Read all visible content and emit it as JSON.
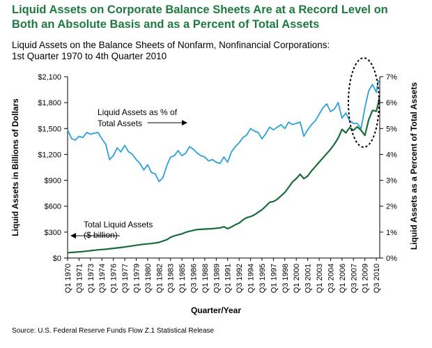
{
  "header": {
    "title_line1": "Liquid Assets on Corporate Balance Sheets Are at a Record Level on",
    "title_line2": "Both an Absolute Basis and as a Percent of Total Assets",
    "subtitle_line1": "Liquid Assets on the Balance Sheets of Nonfarm, Nonfinancial Corporations:",
    "subtitle_line2": "1st Quarter 1970 to 4th Quarter 2010"
  },
  "source": "Source: U.S. Federal Reserve Funds Flow Z.1 Statistical Release",
  "colors": {
    "pct_line": "#2aa0d8",
    "total_line": "#1a6b3a",
    "axis": "#000000"
  },
  "chart_data": {
    "type": "line",
    "xlabel": "Quarter/Year",
    "ylabel_left": "Liquid Assets in Billions of Dollars",
    "ylabel_right": "Liquid Assets as a Percent of Total Assets",
    "ylim_left": [
      0,
      2100
    ],
    "ylim_right": [
      0,
      7
    ],
    "y_ticks_left": [
      "$0",
      "$300",
      "$600",
      "$900",
      "$1,200",
      "$1,500",
      "$1,800",
      "$2,100"
    ],
    "y_ticks_right": [
      "0%",
      "1%",
      "2%",
      "3%",
      "4%",
      "5%",
      "6%",
      "7%"
    ],
    "x_tick_labels": [
      "Q1 1970",
      "Q3 1971",
      "Q1 1973",
      "Q3 1974",
      "Q1 1976",
      "Q3 1977",
      "Q1 1979",
      "Q3 1980",
      "Q1 1982",
      "Q3 1983",
      "Q1 1985",
      "Q3 1986",
      "Q1 1988",
      "Q3 1989",
      "Q1 1991",
      "Q3 1992",
      "Q1 1994",
      "Q3 1995",
      "Q1 1997",
      "Q3 1998",
      "Q1 2000",
      "Q3 2001",
      "Q1 2003",
      "Q3 2004",
      "Q1 2006",
      "Q3 2007",
      "Q1 2009",
      "Q3 2010"
    ],
    "annotations": [
      {
        "text_line1": "Liquid Assets as % of",
        "text_line2": "Total Assets",
        "arrow": "right"
      },
      {
        "text_line1": "Total Liquid Assets",
        "text_line2": "($ billion)",
        "arrow": "left"
      }
    ],
    "highlight": "dashed ellipse around 2008–2010 peak",
    "series": [
      {
        "name": "Liquid Assets as % of Total Assets",
        "axis": "right",
        "color": "#2aa0d8",
        "points": [
          [
            1970.0,
            4.95
          ],
          [
            1970.5,
            4.62
          ],
          [
            1971.0,
            4.55
          ],
          [
            1971.5,
            4.7
          ],
          [
            1972.0,
            4.65
          ],
          [
            1972.5,
            4.85
          ],
          [
            1973.0,
            4.78
          ],
          [
            1973.5,
            4.82
          ],
          [
            1974.0,
            4.85
          ],
          [
            1974.5,
            4.6
          ],
          [
            1975.0,
            4.4
          ],
          [
            1975.5,
            3.8
          ],
          [
            1976.0,
            3.95
          ],
          [
            1976.5,
            4.25
          ],
          [
            1977.0,
            4.1
          ],
          [
            1977.5,
            4.35
          ],
          [
            1978.0,
            4.1
          ],
          [
            1978.5,
            4.0
          ],
          [
            1979.0,
            3.8
          ],
          [
            1979.5,
            3.65
          ],
          [
            1980.0,
            3.4
          ],
          [
            1980.5,
            3.6
          ],
          [
            1981.0,
            3.3
          ],
          [
            1981.5,
            3.25
          ],
          [
            1982.0,
            2.95
          ],
          [
            1982.5,
            3.1
          ],
          [
            1983.0,
            3.55
          ],
          [
            1983.5,
            3.9
          ],
          [
            1984.0,
            3.95
          ],
          [
            1984.5,
            4.15
          ],
          [
            1985.0,
            3.95
          ],
          [
            1985.5,
            4.05
          ],
          [
            1986.0,
            4.3
          ],
          [
            1986.5,
            4.2
          ],
          [
            1987.0,
            4.05
          ],
          [
            1987.5,
            3.95
          ],
          [
            1988.0,
            3.9
          ],
          [
            1988.5,
            3.75
          ],
          [
            1989.0,
            3.8
          ],
          [
            1989.5,
            3.7
          ],
          [
            1990.0,
            3.65
          ],
          [
            1990.5,
            3.9
          ],
          [
            1991.0,
            3.7
          ],
          [
            1991.5,
            4.1
          ],
          [
            1992.0,
            4.3
          ],
          [
            1992.5,
            4.45
          ],
          [
            1993.0,
            4.65
          ],
          [
            1993.5,
            4.75
          ],
          [
            1994.0,
            5.0
          ],
          [
            1994.5,
            4.9
          ],
          [
            1995.0,
            4.85
          ],
          [
            1995.5,
            4.6
          ],
          [
            1996.0,
            4.8
          ],
          [
            1996.5,
            5.05
          ],
          [
            1997.0,
            4.95
          ],
          [
            1997.5,
            5.05
          ],
          [
            1998.0,
            5.15
          ],
          [
            1998.5,
            5.0
          ],
          [
            1999.0,
            5.25
          ],
          [
            1999.5,
            5.15
          ],
          [
            2000.0,
            5.2
          ],
          [
            2000.5,
            5.25
          ],
          [
            2001.0,
            4.7
          ],
          [
            2001.5,
            4.95
          ],
          [
            2002.0,
            5.15
          ],
          [
            2002.5,
            5.3
          ],
          [
            2003.0,
            5.55
          ],
          [
            2003.5,
            5.8
          ],
          [
            2004.0,
            5.95
          ],
          [
            2004.5,
            5.65
          ],
          [
            2005.0,
            5.75
          ],
          [
            2005.5,
            6.0
          ],
          [
            2006.0,
            5.4
          ],
          [
            2006.5,
            5.6
          ],
          [
            2007.0,
            5.3
          ],
          [
            2007.5,
            5.2
          ],
          [
            2008.0,
            5.2
          ],
          [
            2008.5,
            5.0
          ],
          [
            2009.0,
            5.8
          ],
          [
            2009.5,
            6.45
          ],
          [
            2010.0,
            6.7
          ],
          [
            2010.5,
            6.4
          ],
          [
            2010.75,
            6.85
          ],
          [
            2010.9,
            6.8
          ]
        ]
      },
      {
        "name": "Total Liquid Assets ($ billion)",
        "axis": "left",
        "color": "#1a6b3a",
        "points": [
          [
            1970.0,
            62
          ],
          [
            1971.0,
            68
          ],
          [
            1972.0,
            75
          ],
          [
            1973.0,
            85
          ],
          [
            1974.0,
            95
          ],
          [
            1975.0,
            102
          ],
          [
            1976.0,
            112
          ],
          [
            1977.0,
            122
          ],
          [
            1978.0,
            135
          ],
          [
            1979.0,
            148
          ],
          [
            1980.0,
            160
          ],
          [
            1981.0,
            168
          ],
          [
            1982.0,
            182
          ],
          [
            1983.0,
            212
          ],
          [
            1983.5,
            240
          ],
          [
            1984.0,
            258
          ],
          [
            1985.0,
            280
          ],
          [
            1985.5,
            298
          ],
          [
            1986.0,
            310
          ],
          [
            1987.0,
            330
          ],
          [
            1988.0,
            335
          ],
          [
            1989.0,
            340
          ],
          [
            1990.0,
            350
          ],
          [
            1990.5,
            362
          ],
          [
            1991.0,
            340
          ],
          [
            1991.5,
            360
          ],
          [
            1992.0,
            385
          ],
          [
            1992.5,
            405
          ],
          [
            1993.0,
            440
          ],
          [
            1993.5,
            468
          ],
          [
            1994.0,
            480
          ],
          [
            1994.5,
            500
          ],
          [
            1995.0,
            530
          ],
          [
            1995.5,
            560
          ],
          [
            1996.0,
            600
          ],
          [
            1996.5,
            645
          ],
          [
            1997.0,
            655
          ],
          [
            1997.5,
            680
          ],
          [
            1998.0,
            720
          ],
          [
            1998.5,
            760
          ],
          [
            1999.0,
            820
          ],
          [
            1999.5,
            880
          ],
          [
            2000.0,
            920
          ],
          [
            2000.5,
            970
          ],
          [
            2001.0,
            920
          ],
          [
            2001.5,
            950
          ],
          [
            2002.0,
            1010
          ],
          [
            2002.5,
            1060
          ],
          [
            2003.0,
            1110
          ],
          [
            2003.5,
            1160
          ],
          [
            2004.0,
            1210
          ],
          [
            2004.5,
            1260
          ],
          [
            2005.0,
            1320
          ],
          [
            2005.5,
            1390
          ],
          [
            2006.0,
            1490
          ],
          [
            2006.5,
            1450
          ],
          [
            2007.0,
            1510
          ],
          [
            2007.5,
            1480
          ],
          [
            2008.0,
            1520
          ],
          [
            2008.5,
            1480
          ],
          [
            2009.0,
            1420
          ],
          [
            2009.5,
            1600
          ],
          [
            2010.0,
            1710
          ],
          [
            2010.5,
            1700
          ],
          [
            2010.75,
            1790
          ],
          [
            2010.9,
            1860
          ]
        ]
      }
    ]
  }
}
